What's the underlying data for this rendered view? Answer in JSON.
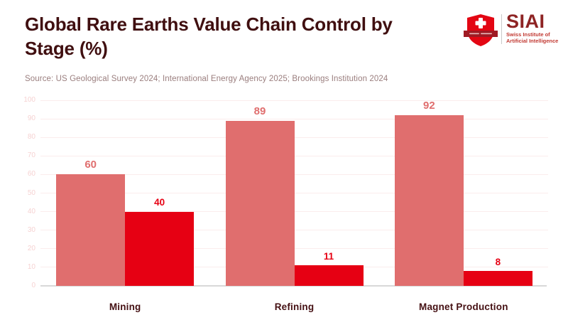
{
  "header": {
    "title": "Global Rare Earths Value Chain Control by\nStage (%)",
    "logo": {
      "acronym": "SIAI",
      "full_name": "Swiss Institute of\nArtificial Intelligence",
      "shield_color": "#e30613",
      "ribbon_color": "#9f1b24",
      "acronym_color": "#8e2424",
      "name_color": "#c23a33"
    }
  },
  "source_note": "Source: US Geological Survey 2024; International Energy Agency 2025; Brookings Institution 2024",
  "chart_data": {
    "type": "bar",
    "title": "Global Rare Earths Value Chain Control by Stage (%)",
    "categories": [
      "Mining",
      "Refining",
      "Magnet Production"
    ],
    "series": [
      {
        "values": [
          60,
          89,
          92
        ],
        "color": "#e06e6e",
        "label_color": "#e06e6e",
        "label_font_size": 15
      },
      {
        "values": [
          40,
          11,
          8
        ],
        "color": "#e60013",
        "label_color": "#e60013",
        "label_font_size": 13.5
      }
    ],
    "xlabel": "",
    "ylabel": "",
    "ylim": [
      0,
      100
    ],
    "ytick_step": 10,
    "ytick_labels": [
      "0",
      "10",
      "20",
      "30",
      "40",
      "50",
      "60",
      "70",
      "80",
      "90",
      "100"
    ],
    "grid": true,
    "legend": "none",
    "value_labels": true
  },
  "colors": {
    "title": "#400f10",
    "source_note": "#9a7e7e",
    "gridline": "#fbecec",
    "axis_line": "#d8d8d8",
    "ytick_label": "#f6d2d2",
    "category_label": "#451013",
    "background": "#ffffff"
  }
}
